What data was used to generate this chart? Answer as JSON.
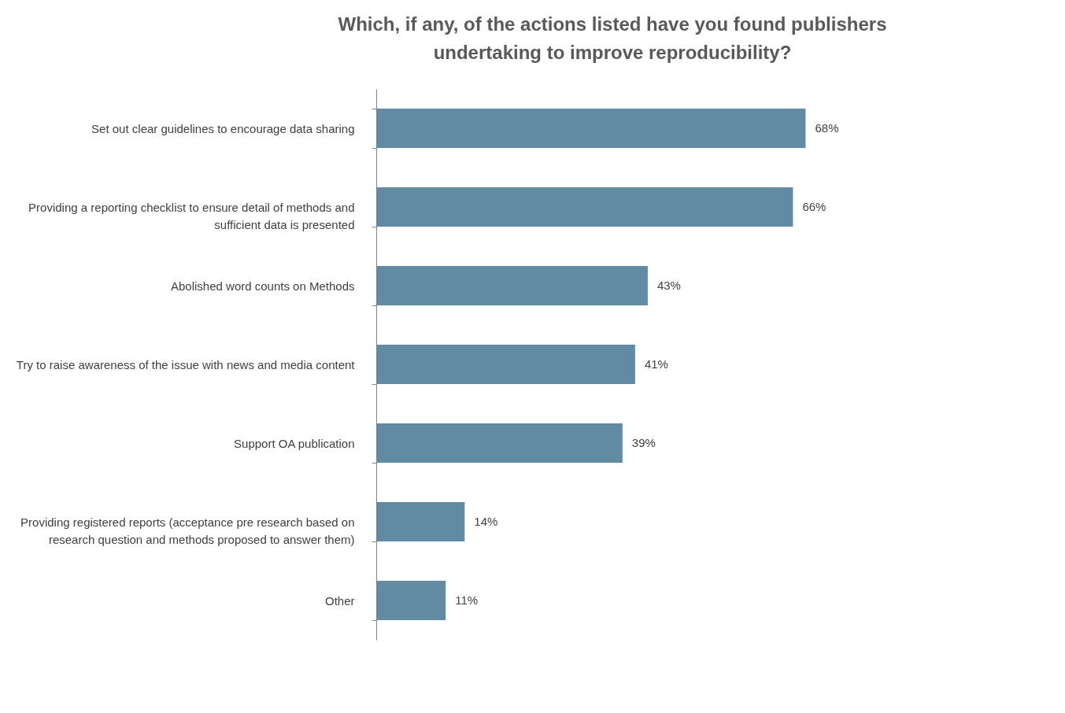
{
  "chart_data": {
    "type": "bar",
    "orientation": "horizontal",
    "title": "Which, if any, of the actions listed have you found publishers undertaking to improve reproducibility?",
    "categories": [
      "Set out clear guidelines to encourage data sharing",
      "Providing a reporting checklist to ensure detail of methods and sufficient data is presented",
      "Abolished word counts on Methods",
      "Try to raise awareness of the issue with news and media content",
      "Support OA publication",
      "Providing registered reports (acceptance pre research based on research question and methods proposed to answer them)",
      "Other"
    ],
    "values": [
      68,
      66,
      43,
      41,
      39,
      14,
      11
    ],
    "value_labels": [
      "68%",
      "66%",
      "43%",
      "41%",
      "39%",
      "14%",
      "11%"
    ],
    "color": "#628aa3",
    "grid": false
  }
}
